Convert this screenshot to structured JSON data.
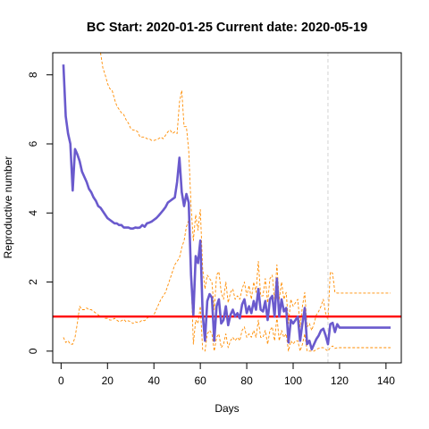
{
  "chart_data": {
    "type": "line",
    "title": "BC Start:  2020-01-25   Current date:  2020-05-19",
    "xlabel": "Days",
    "ylabel": "Reproductive number",
    "xlim": [
      -3.6,
      146.6
    ],
    "ylim": [
      -0.34,
      8.64
    ],
    "xticks": [
      0,
      20,
      40,
      60,
      80,
      100,
      120,
      140
    ],
    "yticks": [
      0,
      2,
      4,
      6,
      8
    ],
    "grid": false,
    "reference_line": {
      "y": 1,
      "color": "#ff0000"
    },
    "current_day_marker": {
      "x": 115,
      "color": "#d3d3d3"
    },
    "series": [
      {
        "role": "estimate",
        "color": "#6a5acd",
        "x": [
          1,
          2,
          3,
          4,
          5,
          6,
          7,
          8,
          9,
          10,
          11,
          12,
          13,
          14,
          15,
          16,
          17,
          18,
          19,
          20,
          21,
          22,
          23,
          24,
          25,
          26,
          27,
          28,
          29,
          30,
          31,
          32,
          33,
          34,
          35,
          36,
          37,
          38,
          39,
          40,
          41,
          42,
          43,
          44,
          45,
          46,
          47,
          48,
          49,
          50,
          51,
          52,
          53,
          54,
          55,
          56,
          57,
          58,
          59,
          60,
          61,
          62,
          63,
          64,
          65,
          66,
          67,
          68,
          69,
          70,
          71,
          72,
          73,
          74,
          75,
          76,
          77,
          78,
          79,
          80,
          81,
          82,
          83,
          84,
          85,
          86,
          87,
          88,
          89,
          90,
          91,
          92,
          93,
          94,
          95,
          96,
          97,
          98,
          99,
          100,
          101,
          102,
          103,
          104,
          105,
          106,
          107,
          108,
          109,
          110,
          111,
          112,
          113,
          114,
          115,
          116,
          117,
          118,
          119,
          120,
          121,
          122,
          123,
          124,
          125,
          126,
          127,
          128,
          129,
          130,
          131,
          132,
          133,
          134,
          135,
          136,
          137,
          138,
          139,
          140,
          141,
          142
        ],
        "y": [
          8.3,
          6.8,
          6.3,
          6.0,
          4.65,
          5.85,
          5.7,
          5.5,
          5.2,
          5.05,
          4.9,
          4.7,
          4.6,
          4.45,
          4.35,
          4.2,
          4.15,
          4.05,
          3.95,
          3.85,
          3.8,
          3.75,
          3.7,
          3.7,
          3.65,
          3.65,
          3.58,
          3.58,
          3.58,
          3.55,
          3.55,
          3.58,
          3.57,
          3.58,
          3.65,
          3.6,
          3.7,
          3.72,
          3.75,
          3.8,
          3.85,
          3.92,
          4.0,
          4.08,
          4.17,
          4.3,
          4.35,
          4.4,
          4.45,
          4.9,
          5.6,
          4.6,
          4.2,
          4.55,
          4.3,
          2.2,
          1.05,
          2.75,
          2.55,
          3.2,
          1.1,
          0.3,
          1.45,
          1.65,
          1.55,
          0.3,
          1.3,
          1.5,
          0.8,
          0.9,
          1.3,
          0.75,
          1.05,
          1.2,
          1.0,
          1.1,
          0.95,
          1.35,
          1.5,
          1.1,
          1.3,
          1.1,
          1.45,
          1.2,
          1.8,
          1.2,
          1.15,
          1.45,
          0.9,
          1.5,
          1.6,
          1.0,
          2.1,
          1.0,
          1.5,
          1.15,
          1.25,
          0.25,
          0.9,
          0.8,
          0.9,
          1.0,
          0.3,
          0.8,
          1.25,
          0.2,
          0.3,
          0.05,
          0.2,
          0.35,
          0.45,
          0.6,
          0.65,
          0.45,
          0.2,
          0.78,
          0.82,
          0.55,
          0.78,
          0.68,
          0.68,
          0.68,
          0.68,
          0.68,
          0.68,
          0.68,
          0.68,
          0.68,
          0.68,
          0.68,
          0.68,
          0.68,
          0.68,
          0.68,
          0.68,
          0.68,
          0.68,
          0.68,
          0.68,
          0.68,
          0.68,
          0.68
        ]
      },
      {
        "role": "upper-bound",
        "color": "#ff8c00",
        "x": [
          17,
          18,
          19,
          20,
          21,
          22,
          23,
          24,
          25,
          26,
          27,
          28,
          29,
          30,
          31,
          32,
          33,
          34,
          35,
          36,
          37,
          38,
          39,
          40,
          41,
          42,
          43,
          44,
          45,
          46,
          47,
          48,
          49,
          50,
          51,
          52,
          53,
          54,
          55,
          56,
          57,
          58,
          59,
          60,
          61,
          62,
          63,
          64,
          65,
          66,
          67,
          68,
          69,
          70,
          71,
          72,
          73,
          74,
          75,
          76,
          77,
          78,
          79,
          80,
          81,
          82,
          83,
          84,
          85,
          86,
          87,
          88,
          89,
          90,
          91,
          92,
          93,
          94,
          95,
          96,
          97,
          98,
          99,
          100,
          101,
          102,
          103,
          104,
          105,
          106,
          107,
          108,
          109,
          110,
          111,
          112,
          113,
          114,
          115,
          116,
          117,
          118,
          119,
          120,
          121,
          122,
          123,
          124,
          125,
          126,
          127,
          128,
          129,
          130,
          131,
          132,
          133,
          134,
          135,
          136,
          137,
          138,
          139,
          140,
          141,
          142
        ],
        "y": [
          8.64,
          8.2,
          8.0,
          7.75,
          7.6,
          7.55,
          7.3,
          7.1,
          7.0,
          6.9,
          6.85,
          6.7,
          6.6,
          6.45,
          6.4,
          6.4,
          6.35,
          6.2,
          6.2,
          6.2,
          6.15,
          6.15,
          6.1,
          6.1,
          6.12,
          6.15,
          6.2,
          6.15,
          6.25,
          6.35,
          6.4,
          6.3,
          6.35,
          6.3,
          7.2,
          7.55,
          6.5,
          6.5,
          5.8,
          4.2,
          3.2,
          3.95,
          3.5,
          4.1,
          2.4,
          1.8,
          2.2,
          2.1,
          2.0,
          1.2,
          2.2,
          2.3,
          1.7,
          1.5,
          2.0,
          1.4,
          1.7,
          1.8,
          1.5,
          1.6,
          1.5,
          1.8,
          2.0,
          1.6,
          1.9,
          1.5,
          2.0,
          1.7,
          2.6,
          1.6,
          1.6,
          2.1,
          1.4,
          2.1,
          2.2,
          1.5,
          2.5,
          1.5,
          2.0,
          1.5,
          1.7,
          0.8,
          1.5,
          1.3,
          1.4,
          1.5,
          0.7,
          1.3,
          1.7,
          0.7,
          0.8,
          0.6,
          0.8,
          1.05,
          1.15,
          1.3,
          1.5,
          1.1,
          0.9,
          2.3,
          2.25,
          1.7,
          1.68,
          1.68,
          1.68,
          1.68,
          1.68,
          1.68,
          1.68,
          1.68,
          1.68,
          1.68,
          1.68,
          1.68,
          1.68,
          1.68,
          1.68,
          1.68,
          1.68,
          1.68,
          1.68,
          1.68,
          1.68,
          1.68,
          1.68,
          1.68
        ]
      },
      {
        "role": "lower-bound",
        "color": "#ff8c00",
        "x": [
          1,
          2,
          3,
          4,
          5,
          6,
          7,
          8,
          9,
          10,
          11,
          12,
          13,
          14,
          15,
          16,
          17,
          18,
          19,
          20,
          21,
          22,
          23,
          24,
          25,
          26,
          27,
          28,
          29,
          30,
          31,
          32,
          33,
          34,
          35,
          36,
          37,
          38,
          39,
          40,
          41,
          42,
          43,
          44,
          45,
          46,
          47,
          48,
          49,
          50,
          51,
          52,
          53,
          54,
          55,
          56,
          57,
          58,
          59,
          60,
          61,
          62,
          63,
          64,
          65,
          66,
          67,
          68,
          69,
          70,
          71,
          72,
          73,
          74,
          75,
          76,
          77,
          78,
          79,
          80,
          81,
          82,
          83,
          84,
          85,
          86,
          87,
          88,
          89,
          90,
          91,
          92,
          93,
          94,
          95,
          96,
          97,
          98,
          99,
          100,
          101,
          102,
          103,
          104,
          105,
          106,
          107,
          108,
          109,
          110,
          111,
          112,
          113,
          114,
          115,
          116,
          117,
          118,
          119,
          120,
          121,
          122,
          123,
          124,
          125,
          126,
          127,
          128,
          129,
          130,
          131,
          132,
          133,
          134,
          135,
          136,
          137,
          138,
          139,
          140,
          141,
          142
        ],
        "y": [
          0.4,
          0.25,
          0.3,
          0.2,
          0.2,
          0.4,
          0.8,
          1.3,
          1.2,
          1.2,
          1.25,
          1.2,
          1.2,
          1.15,
          1.1,
          1.05,
          1.0,
          1.0,
          0.95,
          0.95,
          0.9,
          0.9,
          0.95,
          0.9,
          0.85,
          0.88,
          0.92,
          0.85,
          0.88,
          0.85,
          0.8,
          0.85,
          0.83,
          0.85,
          0.9,
          0.88,
          0.95,
          1.0,
          1.0,
          1.05,
          1.2,
          1.35,
          1.5,
          1.6,
          1.7,
          1.9,
          2.1,
          2.3,
          2.5,
          2.6,
          2.7,
          3.0,
          3.2,
          3.6,
          3.8,
          2.2,
          0.2,
          0.9,
          0.8,
          1.3,
          0.05,
          0.0,
          0.5,
          0.6,
          0.5,
          0.0,
          0.4,
          0.5,
          0.1,
          0.2,
          0.5,
          0.1,
          0.3,
          0.4,
          0.3,
          0.4,
          0.3,
          0.6,
          0.7,
          0.4,
          0.5,
          0.4,
          0.6,
          0.4,
          0.9,
          0.4,
          0.4,
          0.6,
          0.2,
          0.6,
          0.7,
          0.3,
          1.0,
          0.3,
          0.6,
          0.4,
          0.5,
          0.0,
          0.3,
          0.2,
          0.3,
          0.3,
          0.0,
          0.2,
          0.5,
          0.0,
          0.0,
          0.0,
          0.0,
          0.05,
          0.08,
          0.1,
          0.1,
          0.05,
          0.0,
          0.1,
          0.15,
          0.08,
          0.1,
          0.1,
          0.1,
          0.1,
          0.1,
          0.1,
          0.1,
          0.1,
          0.1,
          0.1,
          0.1,
          0.1,
          0.1,
          0.1,
          0.1,
          0.1,
          0.1,
          0.1,
          0.1,
          0.1,
          0.1,
          0.1,
          0.1,
          0.1
        ]
      }
    ]
  }
}
